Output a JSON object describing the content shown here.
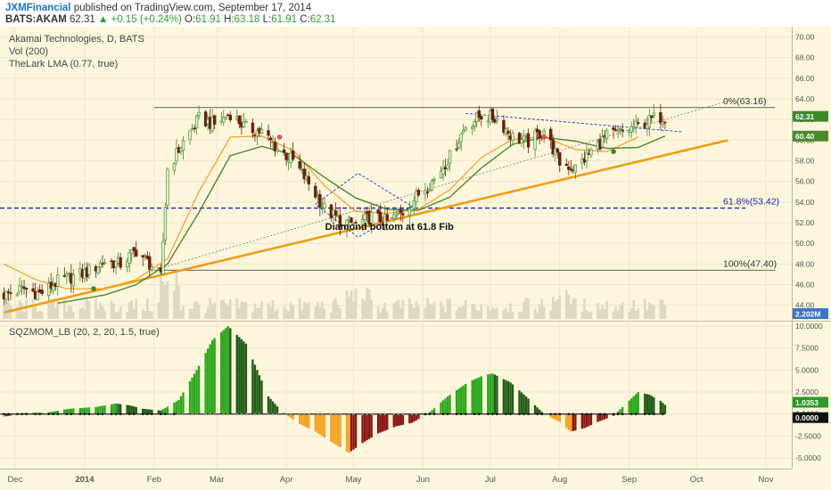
{
  "header": {
    "brand": "JXMFinancial",
    "published": "published on TradingView.com, September 17, 2014",
    "symbol": "BATS:AKAM",
    "last": "62.31",
    "change": "+0.15 (+0.24%)",
    "ohlc": {
      "o_label": "O:",
      "o": "61.91",
      "h_label": "H:",
      "h": "63.18",
      "l_label": "L:",
      "l": "61.91",
      "c_label": "C:",
      "c": "62.31"
    }
  },
  "legend": {
    "title": "Akamai Technologies, D, BATS",
    "vol": "Vol (200)",
    "lma": "TheLark LMA (0.77, true)",
    "osc": "SQZMOM_LB (20, 2, 20, 1.5, true)"
  },
  "colors": {
    "bg": "#fdf6dc",
    "up": "#3d8a2a",
    "down": "#6b1e0b",
    "ma": "#4b8a2c",
    "lma": "#f2a52c",
    "trend": "#f29c11",
    "fib_mid": "#1f1fbf",
    "diamond": "#2b2bd0",
    "osc_green_bright": "#2ca81c",
    "osc_green_dark": "#1f5c14",
    "osc_red_dark": "#8a1414",
    "osc_orange": "#f5a21f"
  },
  "chart_data": [
    {
      "type": "candlestick",
      "title": "Akamai Technologies, D, BATS",
      "y_ticks": [
        44,
        46,
        48,
        50,
        52,
        54,
        56,
        58,
        60,
        62,
        64,
        66,
        68,
        70
      ],
      "y_tick_labels": [
        "44.00",
        "46.00",
        "48.00",
        "50.00",
        "52.00",
        "54.00",
        "56.00",
        "58.00",
        "60.00",
        "62.00",
        "64.00",
        "66.00",
        "68.00",
        "70.00"
      ],
      "ylim": [
        42.5,
        71
      ],
      "x_tick_labels": [
        "Dec",
        "2014",
        "Feb",
        "Mar",
        "Apr",
        "May",
        "Jun",
        "Jul",
        "Aug",
        "Sep",
        "Oct",
        "Nov"
      ],
      "x_tick_dates": [
        "2013-12-01",
        "2014-01-01",
        "2014-02-01",
        "2014-03-01",
        "2014-04-01",
        "2014-05-01",
        "2014-06-01",
        "2014-07-01",
        "2014-08-01",
        "2014-09-01",
        "2014-10-01",
        "2014-11-01"
      ],
      "price_path": [
        [
          "2013-11-26",
          45.0
        ],
        [
          "2013-12-05",
          45.6
        ],
        [
          "2013-12-12",
          45.1
        ],
        [
          "2013-12-20",
          46.3
        ],
        [
          "2014-01-02",
          47.2
        ],
        [
          "2014-01-10",
          48.3
        ],
        [
          "2014-01-17",
          48.0
        ],
        [
          "2014-01-24",
          49.3
        ],
        [
          "2014-01-31",
          47.8
        ],
        [
          "2014-02-04",
          46.7
        ],
        [
          "2014-02-07",
          57.2
        ],
        [
          "2014-02-14",
          59.8
        ],
        [
          "2014-02-21",
          62.1
        ],
        [
          "2014-02-28",
          61.5
        ],
        [
          "2014-03-07",
          62.6
        ],
        [
          "2014-03-14",
          61.2
        ],
        [
          "2014-03-21",
          60.8
        ],
        [
          "2014-03-28",
          59.2
        ],
        [
          "2014-04-04",
          58.0
        ],
        [
          "2014-04-11",
          55.8
        ],
        [
          "2014-04-18",
          53.4
        ],
        [
          "2014-04-25",
          52.2
        ],
        [
          "2014-05-02",
          51.8
        ],
        [
          "2014-05-09",
          52.6
        ],
        [
          "2014-05-16",
          52.1
        ],
        [
          "2014-05-23",
          53.0
        ],
        [
          "2014-05-30",
          54.8
        ],
        [
          "2014-06-06",
          56.2
        ],
        [
          "2014-06-13",
          58.4
        ],
        [
          "2014-06-20",
          61.4
        ],
        [
          "2014-06-27",
          62.4
        ],
        [
          "2014-07-04",
          62.1
        ],
        [
          "2014-07-11",
          60.3
        ],
        [
          "2014-07-18",
          59.8
        ],
        [
          "2014-07-25",
          61.0
        ],
        [
          "2014-08-01",
          57.8
        ],
        [
          "2014-08-08",
          57.3
        ],
        [
          "2014-08-15",
          58.9
        ],
        [
          "2014-08-22",
          60.4
        ],
        [
          "2014-08-29",
          60.8
        ],
        [
          "2014-09-05",
          61.4
        ],
        [
          "2014-09-12",
          62.1
        ],
        [
          "2014-09-17",
          62.31
        ]
      ],
      "ma_series": [
        [
          "2013-12-20",
          44.2
        ],
        [
          "2014-01-10",
          45.0
        ],
        [
          "2014-01-24",
          46.0
        ],
        [
          "2014-02-07",
          48.0
        ],
        [
          "2014-02-21",
          53.0
        ],
        [
          "2014-03-07",
          58.5
        ],
        [
          "2014-03-21",
          59.4
        ],
        [
          "2014-04-04",
          58.6
        ],
        [
          "2014-04-18",
          56.4
        ],
        [
          "2014-05-02",
          54.4
        ],
        [
          "2014-05-16",
          53.3
        ],
        [
          "2014-05-30",
          53.2
        ],
        [
          "2014-06-13",
          54.5
        ],
        [
          "2014-06-27",
          57.3
        ],
        [
          "2014-07-11",
          59.6
        ],
        [
          "2014-07-25",
          60.3
        ],
        [
          "2014-08-08",
          59.9
        ],
        [
          "2014-08-22",
          59.2
        ],
        [
          "2014-09-05",
          59.3
        ],
        [
          "2014-09-17",
          60.4
        ]
      ],
      "lma_series": [
        [
          "2013-11-26",
          48.0
        ],
        [
          "2013-12-10",
          46.5
        ],
        [
          "2013-12-24",
          45.6
        ],
        [
          "2014-01-10",
          45.6
        ],
        [
          "2014-01-24",
          46.5
        ],
        [
          "2014-02-07",
          48.5
        ],
        [
          "2014-02-21",
          55.0
        ],
        [
          "2014-03-07",
          60.3
        ],
        [
          "2014-03-21",
          60.4
        ],
        [
          "2014-04-04",
          59.0
        ],
        [
          "2014-04-18",
          55.6
        ],
        [
          "2014-05-02",
          53.1
        ],
        [
          "2014-05-16",
          52.9
        ],
        [
          "2014-05-30",
          53.3
        ],
        [
          "2014-06-13",
          55.2
        ],
        [
          "2014-06-27",
          58.3
        ],
        [
          "2014-07-11",
          60.1
        ],
        [
          "2014-07-25",
          60.3
        ],
        [
          "2014-08-08",
          59.1
        ],
        [
          "2014-08-22",
          58.9
        ],
        [
          "2014-09-05",
          60.3
        ]
      ],
      "trendline": {
        "from": [
          "2013-11-26",
          43.3
        ],
        "to": [
          "2014-10-15",
          60.0
        ]
      },
      "dotted_trend": {
        "from": [
          "2014-02-04",
          47.6
        ],
        "to": [
          "2014-10-15",
          63.8
        ]
      },
      "fib_levels": [
        {
          "label": "0%(63.16)",
          "value": 63.16
        },
        {
          "label": "61.8%(53.42)",
          "value": 53.42
        },
        {
          "label": "100%(47.40)",
          "value": 47.4
        }
      ],
      "fib_range": {
        "from": "2014-02-01",
        "to": "2014-11-05"
      },
      "falling_wedge_line": {
        "from": [
          "2014-06-20",
          62.6
        ],
        "to": [
          "2014-09-25",
          60.8
        ]
      },
      "diamond": [
        [
          "2014-04-14",
          53.8
        ],
        [
          "2014-05-03",
          56.8
        ],
        [
          "2014-05-27",
          53.6
        ],
        [
          "2014-05-03",
          50.6
        ]
      ],
      "annotation": {
        "text": "Diamond bottom at 61.8 Fib",
        "at": [
          "2014-05-17",
          51.3
        ]
      },
      "markers": [
        {
          "at": [
            "2014-01-05",
            45.6
          ],
          "color": "#3d8a2a"
        },
        {
          "at": [
            "2014-03-29",
            60.3
          ],
          "color": "#e9476b"
        },
        {
          "at": [
            "2014-07-25",
            60.3
          ],
          "color": "#e9476b"
        },
        {
          "at": [
            "2014-08-25",
            58.9
          ],
          "color": "#3d8a2a"
        }
      ],
      "last_labels": [
        {
          "value": 62.31,
          "label": "62.31"
        },
        {
          "value": 60.4,
          "label": "60.40"
        }
      ],
      "volume_label": "2.202M"
    },
    {
      "type": "bar",
      "title": "SQZMOM_LB (20, 2, 20, 1.5, true)",
      "y_ticks": [
        -5,
        -2.5,
        0,
        2.5,
        5,
        7.5,
        10
      ],
      "y_tick_labels": [
        "-5.0000",
        "-2.5000",
        "0.0000",
        "2.5000",
        "5.0000",
        "7.5000",
        "10.0000"
      ],
      "ylim": [
        -6.2,
        10.5
      ],
      "momentum_path": [
        [
          "2013-11-26",
          -0.3
        ],
        [
          "2013-12-06",
          0.15
        ],
        [
          "2013-12-15",
          0.15
        ],
        [
          "2013-12-25",
          0.6
        ],
        [
          "2014-01-06",
          0.8
        ],
        [
          "2014-01-15",
          1.2
        ],
        [
          "2014-01-21",
          1.0
        ],
        [
          "2014-01-27",
          0.6
        ],
        [
          "2014-02-04",
          0.4
        ],
        [
          "2014-02-12",
          1.6
        ],
        [
          "2014-02-20",
          5.0
        ],
        [
          "2014-02-27",
          8.4
        ],
        [
          "2014-03-06",
          10.0
        ],
        [
          "2014-03-14",
          8.0
        ],
        [
          "2014-03-19",
          5.0
        ],
        [
          "2014-03-24",
          2.0
        ],
        [
          "2014-03-30",
          0.3
        ],
        [
          "2014-04-06",
          -1.0
        ],
        [
          "2014-04-14",
          -2.0
        ],
        [
          "2014-04-22",
          -3.3
        ],
        [
          "2014-04-29",
          -4.4
        ],
        [
          "2014-05-05",
          -3.3
        ],
        [
          "2014-05-12",
          -2.2
        ],
        [
          "2014-05-20",
          -1.4
        ],
        [
          "2014-05-27",
          -1.0
        ],
        [
          "2014-06-03",
          0.0
        ],
        [
          "2014-06-12",
          2.0
        ],
        [
          "2014-06-21",
          3.6
        ],
        [
          "2014-06-28",
          4.4
        ],
        [
          "2014-07-02",
          4.6
        ],
        [
          "2014-07-10",
          3.6
        ],
        [
          "2014-07-17",
          2.0
        ],
        [
          "2014-07-25",
          0.0
        ],
        [
          "2014-08-01",
          -0.9
        ],
        [
          "2014-08-06",
          -2.0
        ],
        [
          "2014-08-12",
          -1.6
        ],
        [
          "2014-08-18",
          -0.9
        ],
        [
          "2014-08-25",
          -0.2
        ],
        [
          "2014-08-29",
          0.8
        ],
        [
          "2014-09-05",
          2.5
        ],
        [
          "2014-09-10",
          2.2
        ],
        [
          "2014-09-15",
          1.5
        ],
        [
          "2014-09-17",
          1.0353
        ]
      ],
      "last_labels": [
        {
          "value": 1.0353,
          "label": "1.0353"
        },
        {
          "value": 0,
          "label": "0.0000"
        }
      ]
    }
  ]
}
